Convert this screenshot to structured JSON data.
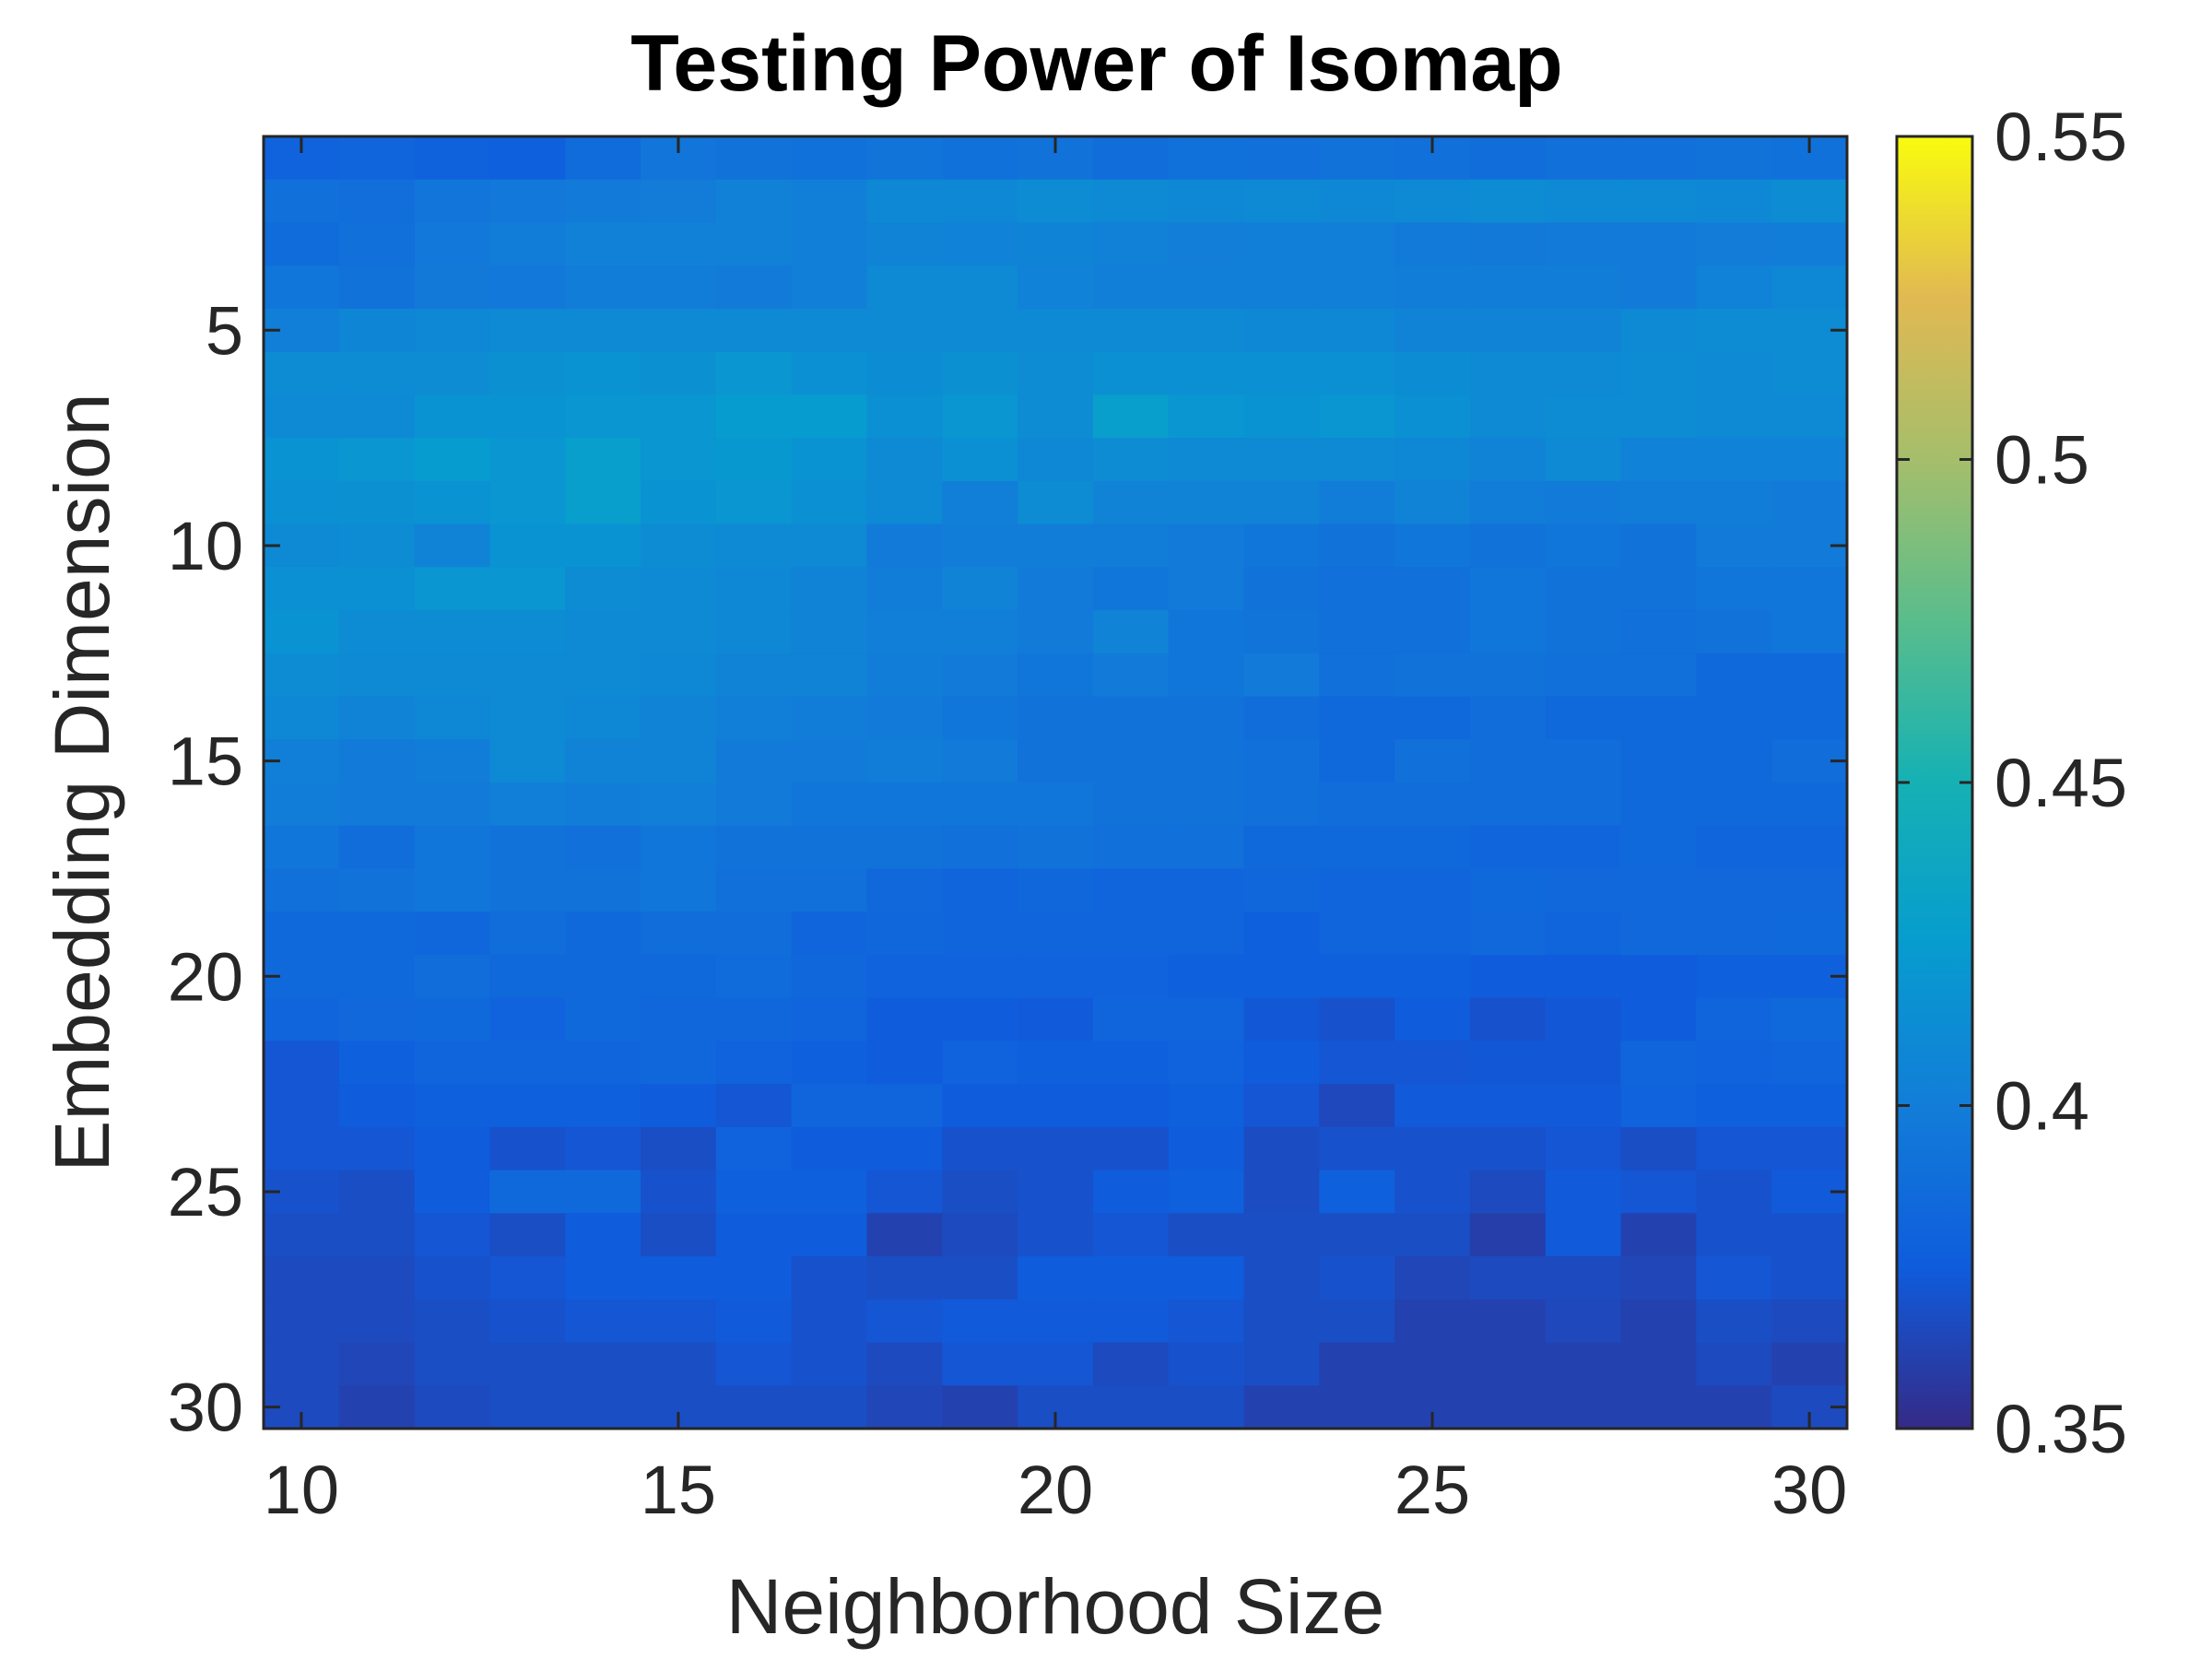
{
  "chart_data": {
    "type": "heatmap",
    "title": "Testing Power of Isomap",
    "xlabel": "Neighborhood Size",
    "ylabel": "Embedding Dimension",
    "x": [
      10,
      11,
      12,
      13,
      14,
      15,
      16,
      17,
      18,
      19,
      20,
      21,
      22,
      23,
      24,
      25,
      26,
      27,
      28,
      29,
      30
    ],
    "y": [
      1,
      2,
      3,
      4,
      5,
      6,
      7,
      8,
      9,
      10,
      11,
      12,
      13,
      14,
      15,
      16,
      17,
      18,
      19,
      20,
      21,
      22,
      23,
      24,
      25,
      26,
      27,
      28,
      29,
      30
    ],
    "x_ticks": [
      10,
      15,
      20,
      25,
      30
    ],
    "x_tick_labels": [
      "10",
      "15",
      "20",
      "25",
      "30"
    ],
    "y_ticks": [
      5,
      10,
      15,
      20,
      25,
      30
    ],
    "y_tick_labels": [
      "5",
      "10",
      "15",
      "20",
      "25",
      "30"
    ],
    "y_axis_reversed": true,
    "colormap": "parula",
    "color_range": [
      0.35,
      0.55
    ],
    "colorbar_ticks": [
      0.35,
      0.4,
      0.45,
      0.5,
      0.55
    ],
    "colorbar_tick_labels": [
      "0.35",
      "0.4",
      "0.45",
      "0.5",
      "0.55"
    ],
    "values": [
      [
        0.38,
        0.382,
        0.379,
        0.378,
        0.387,
        0.394,
        0.392,
        0.391,
        0.393,
        0.391,
        0.392,
        0.388,
        0.391,
        0.39,
        0.392,
        0.39,
        0.388,
        0.39,
        0.39,
        0.392,
        0.391
      ],
      [
        0.39,
        0.389,
        0.394,
        0.396,
        0.398,
        0.399,
        0.403,
        0.402,
        0.408,
        0.408,
        0.412,
        0.41,
        0.408,
        0.41,
        0.409,
        0.41,
        0.412,
        0.41,
        0.41,
        0.409,
        0.412
      ],
      [
        0.387,
        0.39,
        0.396,
        0.4,
        0.403,
        0.403,
        0.403,
        0.402,
        0.405,
        0.404,
        0.406,
        0.403,
        0.401,
        0.402,
        0.402,
        0.398,
        0.397,
        0.398,
        0.398,
        0.399,
        0.4
      ],
      [
        0.395,
        0.392,
        0.397,
        0.396,
        0.4,
        0.4,
        0.398,
        0.402,
        0.41,
        0.41,
        0.404,
        0.402,
        0.402,
        0.402,
        0.402,
        0.4,
        0.4,
        0.4,
        0.398,
        0.404,
        0.408
      ],
      [
        0.402,
        0.407,
        0.408,
        0.41,
        0.41,
        0.41,
        0.41,
        0.41,
        0.41,
        0.41,
        0.41,
        0.41,
        0.41,
        0.408,
        0.408,
        0.405,
        0.405,
        0.405,
        0.41,
        0.412,
        0.412
      ],
      [
        0.412,
        0.412,
        0.412,
        0.416,
        0.418,
        0.416,
        0.42,
        0.415,
        0.413,
        0.416,
        0.412,
        0.415,
        0.415,
        0.415,
        0.415,
        0.413,
        0.41,
        0.41,
        0.412,
        0.41,
        0.412
      ],
      [
        0.41,
        0.41,
        0.418,
        0.418,
        0.42,
        0.42,
        0.425,
        0.425,
        0.415,
        0.42,
        0.412,
        0.428,
        0.42,
        0.418,
        0.42,
        0.415,
        0.41,
        0.412,
        0.412,
        0.41,
        0.41
      ],
      [
        0.418,
        0.42,
        0.425,
        0.42,
        0.428,
        0.42,
        0.422,
        0.418,
        0.41,
        0.415,
        0.408,
        0.412,
        0.41,
        0.41,
        0.41,
        0.408,
        0.405,
        0.41,
        0.404,
        0.404,
        0.404
      ],
      [
        0.415,
        0.416,
        0.418,
        0.42,
        0.428,
        0.418,
        0.42,
        0.415,
        0.41,
        0.402,
        0.412,
        0.405,
        0.405,
        0.405,
        0.4,
        0.405,
        0.4,
        0.398,
        0.4,
        0.4,
        0.398
      ],
      [
        0.41,
        0.412,
        0.405,
        0.418,
        0.418,
        0.412,
        0.41,
        0.41,
        0.398,
        0.4,
        0.4,
        0.4,
        0.398,
        0.395,
        0.392,
        0.395,
        0.392,
        0.395,
        0.392,
        0.398,
        0.398
      ],
      [
        0.415,
        0.415,
        0.42,
        0.42,
        0.412,
        0.41,
        0.408,
        0.405,
        0.4,
        0.405,
        0.398,
        0.395,
        0.398,
        0.392,
        0.39,
        0.39,
        0.395,
        0.392,
        0.392,
        0.395,
        0.395
      ],
      [
        0.418,
        0.412,
        0.412,
        0.412,
        0.41,
        0.41,
        0.408,
        0.405,
        0.402,
        0.402,
        0.398,
        0.405,
        0.395,
        0.393,
        0.39,
        0.39,
        0.395,
        0.392,
        0.39,
        0.392,
        0.395
      ],
      [
        0.412,
        0.41,
        0.41,
        0.41,
        0.41,
        0.408,
        0.405,
        0.405,
        0.4,
        0.398,
        0.395,
        0.398,
        0.395,
        0.398,
        0.39,
        0.392,
        0.392,
        0.39,
        0.39,
        0.385,
        0.385
      ],
      [
        0.408,
        0.405,
        0.408,
        0.41,
        0.408,
        0.405,
        0.402,
        0.4,
        0.398,
        0.395,
        0.392,
        0.392,
        0.392,
        0.388,
        0.385,
        0.385,
        0.388,
        0.385,
        0.385,
        0.385,
        0.385
      ],
      [
        0.402,
        0.398,
        0.4,
        0.41,
        0.405,
        0.405,
        0.398,
        0.398,
        0.4,
        0.398,
        0.392,
        0.392,
        0.392,
        0.39,
        0.385,
        0.39,
        0.388,
        0.388,
        0.385,
        0.385,
        0.388
      ],
      [
        0.4,
        0.398,
        0.398,
        0.402,
        0.4,
        0.402,
        0.398,
        0.395,
        0.395,
        0.395,
        0.395,
        0.392,
        0.392,
        0.39,
        0.388,
        0.388,
        0.388,
        0.388,
        0.385,
        0.385,
        0.385
      ],
      [
        0.395,
        0.388,
        0.395,
        0.392,
        0.39,
        0.395,
        0.392,
        0.392,
        0.392,
        0.39,
        0.392,
        0.39,
        0.39,
        0.385,
        0.385,
        0.385,
        0.382,
        0.382,
        0.385,
        0.382,
        0.382
      ],
      [
        0.39,
        0.392,
        0.395,
        0.392,
        0.392,
        0.395,
        0.39,
        0.39,
        0.384,
        0.382,
        0.383,
        0.382,
        0.382,
        0.383,
        0.382,
        0.382,
        0.385,
        0.384,
        0.384,
        0.384,
        0.384
      ],
      [
        0.385,
        0.385,
        0.383,
        0.388,
        0.385,
        0.388,
        0.388,
        0.382,
        0.383,
        0.382,
        0.382,
        0.382,
        0.382,
        0.378,
        0.382,
        0.382,
        0.384,
        0.382,
        0.384,
        0.384,
        0.385
      ],
      [
        0.385,
        0.385,
        0.388,
        0.385,
        0.385,
        0.385,
        0.386,
        0.383,
        0.38,
        0.38,
        0.38,
        0.38,
        0.378,
        0.378,
        0.378,
        0.378,
        0.376,
        0.375,
        0.375,
        0.378,
        0.378
      ],
      [
        0.382,
        0.384,
        0.385,
        0.38,
        0.385,
        0.383,
        0.383,
        0.382,
        0.376,
        0.376,
        0.374,
        0.382,
        0.382,
        0.373,
        0.37,
        0.375,
        0.37,
        0.373,
        0.375,
        0.382,
        0.385
      ],
      [
        0.372,
        0.378,
        0.382,
        0.382,
        0.382,
        0.383,
        0.38,
        0.378,
        0.375,
        0.38,
        0.378,
        0.378,
        0.38,
        0.375,
        0.372,
        0.372,
        0.373,
        0.373,
        0.382,
        0.38,
        0.382
      ],
      [
        0.372,
        0.375,
        0.378,
        0.378,
        0.378,
        0.376,
        0.372,
        0.382,
        0.382,
        0.375,
        0.375,
        0.375,
        0.378,
        0.372,
        0.365,
        0.374,
        0.374,
        0.374,
        0.38,
        0.378,
        0.378
      ],
      [
        0.372,
        0.372,
        0.375,
        0.37,
        0.372,
        0.368,
        0.38,
        0.375,
        0.375,
        0.37,
        0.37,
        0.37,
        0.375,
        0.367,
        0.37,
        0.37,
        0.37,
        0.372,
        0.368,
        0.372,
        0.372
      ],
      [
        0.37,
        0.368,
        0.375,
        0.385,
        0.385,
        0.37,
        0.378,
        0.378,
        0.372,
        0.368,
        0.37,
        0.375,
        0.378,
        0.367,
        0.378,
        0.37,
        0.366,
        0.374,
        0.372,
        0.37,
        0.374
      ],
      [
        0.368,
        0.368,
        0.372,
        0.368,
        0.375,
        0.368,
        0.375,
        0.375,
        0.362,
        0.366,
        0.37,
        0.372,
        0.368,
        0.368,
        0.368,
        0.368,
        0.36,
        0.374,
        0.362,
        0.37,
        0.37
      ],
      [
        0.366,
        0.366,
        0.37,
        0.372,
        0.375,
        0.375,
        0.375,
        0.37,
        0.368,
        0.368,
        0.375,
        0.375,
        0.375,
        0.368,
        0.37,
        0.364,
        0.366,
        0.366,
        0.364,
        0.372,
        0.37
      ],
      [
        0.366,
        0.366,
        0.368,
        0.37,
        0.372,
        0.372,
        0.374,
        0.37,
        0.372,
        0.374,
        0.374,
        0.374,
        0.372,
        0.368,
        0.368,
        0.362,
        0.362,
        0.365,
        0.362,
        0.368,
        0.366
      ],
      [
        0.366,
        0.364,
        0.368,
        0.368,
        0.368,
        0.368,
        0.372,
        0.37,
        0.366,
        0.372,
        0.372,
        0.366,
        0.37,
        0.368,
        0.362,
        0.362,
        0.362,
        0.362,
        0.362,
        0.366,
        0.362
      ],
      [
        0.366,
        0.362,
        0.366,
        0.368,
        0.368,
        0.368,
        0.368,
        0.368,
        0.364,
        0.362,
        0.368,
        0.368,
        0.368,
        0.362,
        0.362,
        0.362,
        0.362,
        0.362,
        0.362,
        0.362,
        0.366
      ]
    ]
  }
}
